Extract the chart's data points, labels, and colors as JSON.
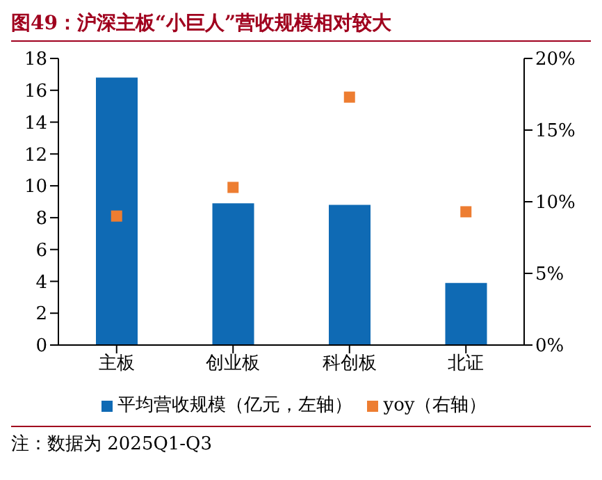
{
  "chart_data": {
    "type": "bar",
    "title": "图49：沪深主板“小巨人”营收规模相对较大",
    "categories": [
      "主板",
      "创业板",
      "科创板",
      "北证"
    ],
    "series": [
      {
        "name": "平均营收规模（亿元，左轴）",
        "color": "#0f6ab4",
        "values": [
          16.8,
          8.9,
          8.8,
          3.9
        ]
      },
      {
        "name": "yoy（右轴）",
        "type": "scatter",
        "axis": "y2",
        "color": "#ed7d31",
        "marker": "square",
        "values": [
          9.0,
          11.0,
          17.3,
          9.3
        ]
      }
    ],
    "ylim": [
      0,
      18
    ],
    "yticks": [
      0,
      2,
      4,
      6,
      8,
      10,
      12,
      14,
      16,
      18
    ],
    "y2lim": [
      0,
      20
    ],
    "y2ticks": [
      {
        "value": 0,
        "label": "0%"
      },
      {
        "value": 5,
        "label": "5%"
      },
      {
        "value": 10,
        "label": "10%"
      },
      {
        "value": 15,
        "label": "15%"
      },
      {
        "value": 20,
        "label": "20%"
      }
    ],
    "legend": "bottom",
    "annotations": [
      "注：数据为 2025Q1-Q3"
    ]
  }
}
